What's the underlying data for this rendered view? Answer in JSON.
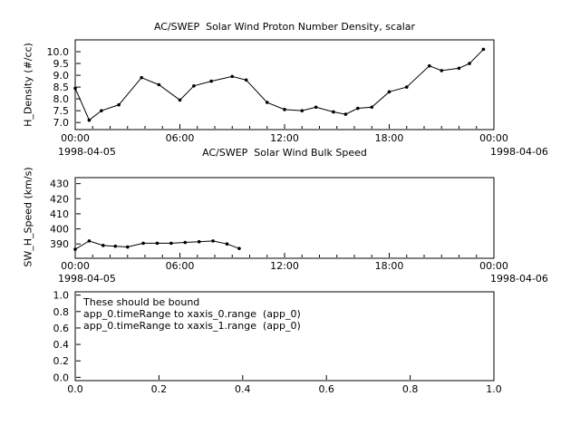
{
  "window": {
    "background": "#ffffff",
    "foreground": "#000000"
  },
  "chart_data": [
    {
      "type": "line",
      "title": "AC/SWEP  Solar Wind Proton Number Density, scalar",
      "ylabel": "H_Density (#/cc)",
      "xlabel": "",
      "line_color": "#000000",
      "marker": "circle",
      "ylim": [
        6.7,
        10.5
      ],
      "ytick_values": [
        7.0,
        7.5,
        8.0,
        8.5,
        9.0,
        9.5,
        10.0
      ],
      "ytick_labels": [
        "7.0",
        "7.5",
        "8.0",
        "8.5",
        "9.0",
        "9.5",
        "10.0"
      ],
      "xlim": [
        0,
        24
      ],
      "xtick_values": [
        0,
        6,
        12,
        18,
        24
      ],
      "xtick_labels": [
        "00:00",
        "06:00",
        "12:00",
        "18:00",
        "00:00"
      ],
      "minor_x_step": 1,
      "date_left": "1998-04-05",
      "date_right": "1998-04-06",
      "series": [
        {
          "name": "H_Density",
          "x_hours": [
            0.0,
            0.8,
            1.5,
            2.5,
            3.8,
            4.8,
            6.0,
            6.8,
            7.8,
            9.0,
            9.8,
            11.0,
            12.0,
            13.0,
            13.8,
            14.8,
            15.5,
            16.2,
            17.0,
            18.0,
            19.0,
            20.3,
            21.0,
            22.0,
            22.6,
            23.4
          ],
          "values": [
            8.45,
            7.1,
            7.5,
            7.75,
            8.9,
            8.6,
            7.95,
            8.55,
            8.75,
            8.95,
            8.8,
            7.85,
            7.55,
            7.5,
            7.65,
            7.45,
            7.35,
            7.6,
            7.65,
            8.3,
            8.5,
            9.4,
            9.2,
            9.3,
            9.5,
            10.1
          ]
        }
      ]
    },
    {
      "type": "line",
      "title": "AC/SWEP  Solar Wind Bulk Speed",
      "ylabel": "SW_H_Speed (km/s)",
      "xlabel": "",
      "line_color": "#000000",
      "marker": "circle",
      "ylim": [
        380.5,
        434
      ],
      "ytick_values": [
        390,
        400,
        410,
        420,
        430
      ],
      "ytick_labels": [
        "390",
        "400",
        "410",
        "420",
        "430"
      ],
      "xlim": [
        0,
        24
      ],
      "xtick_values": [
        0,
        6,
        12,
        18,
        24
      ],
      "xtick_labels": [
        "00:00",
        "06:00",
        "12:00",
        "18:00",
        "00:00"
      ],
      "minor_x_step": 1,
      "date_left": "1998-04-05",
      "date_right": "1998-04-06",
      "series": [
        {
          "name": "SW_H_Speed",
          "x_hours": [
            0.0,
            0.8,
            1.6,
            2.3,
            3.0,
            3.9,
            4.7,
            5.5,
            6.3,
            7.1,
            7.9,
            8.7,
            9.4
          ],
          "values": [
            386.5,
            392.0,
            389.0,
            388.5,
            388.0,
            390.5,
            390.5,
            390.5,
            391.0,
            391.5,
            392.0,
            390.0,
            387.0
          ]
        }
      ]
    },
    {
      "type": "empty",
      "title": "",
      "ylim": [
        -0.04,
        1.04
      ],
      "ytick_values": [
        0.0,
        0.2,
        0.4,
        0.6,
        0.8,
        1.0
      ],
      "ytick_labels": [
        "0.0",
        "0.2",
        "0.4",
        "0.6",
        "0.8",
        "1.0"
      ],
      "xlim": [
        0,
        1
      ],
      "xtick_values": [
        0.0,
        0.2,
        0.4,
        0.6,
        0.8,
        1.0
      ],
      "xtick_labels": [
        "0.0",
        "0.2",
        "0.4",
        "0.6",
        "0.8",
        "1.0"
      ],
      "annotations": [
        "These should be bound",
        "app_0.timeRange to xaxis_0.range  (app_0)",
        "app_0.timeRange to xaxis_1.range  (app_0)"
      ]
    }
  ]
}
